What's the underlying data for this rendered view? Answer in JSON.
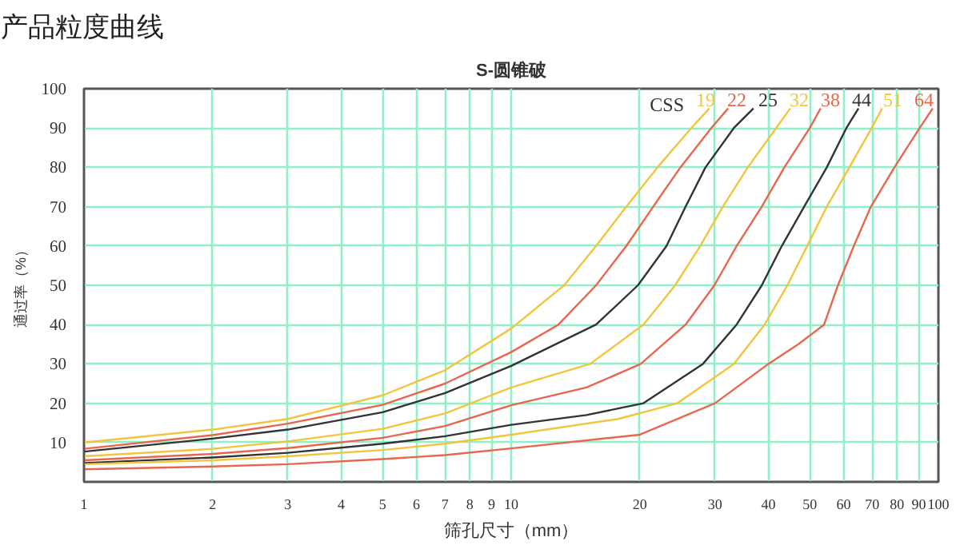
{
  "chart_data": {
    "type": "line",
    "title": "产品粒度曲线",
    "subtitle": "S-圆锥破",
    "xlabel": "筛孔尺寸（mm）",
    "ylabel": "通过率（%）",
    "annotations": [
      "CSS"
    ],
    "log": "x",
    "grid": true,
    "legend": false,
    "marker": "none",
    "line_style": "solid",
    "xlim": [
      1,
      100
    ],
    "xticks": [
      1,
      2,
      3,
      4,
      5,
      6,
      7,
      8,
      9,
      10,
      20,
      30,
      40,
      50,
      60,
      70,
      80,
      90,
      100
    ],
    "ylim": [
      0,
      100
    ],
    "yticks": [
      10,
      20,
      30,
      40,
      50,
      60,
      70,
      80,
      90,
      100
    ],
    "series": [
      {
        "name": "19",
        "color": "#f2c53d",
        "x": [
          1,
          2,
          3,
          5,
          7,
          10,
          13.3,
          15.8,
          18.6,
          22,
          26.4,
          29.1
        ],
        "values": [
          10,
          13.3,
          16,
          22,
          28.4,
          39,
          50,
          60,
          70,
          80,
          90,
          95
        ]
      },
      {
        "name": "22",
        "color": "#e8664e",
        "x": [
          1,
          2,
          3,
          5,
          7,
          10,
          12.9,
          15.8,
          18.6,
          21.5,
          24.9,
          29.4,
          32.2
        ],
        "values": [
          8.4,
          11.9,
          14.8,
          19.6,
          25,
          33,
          40,
          50,
          60,
          70,
          80,
          90,
          95
        ]
      },
      {
        "name": "25",
        "color": "#333333",
        "x": [
          1,
          2,
          3,
          5,
          7,
          10,
          15.8,
          19.8,
          23.1,
          25.6,
          28.5,
          33.2,
          36.9
        ],
        "values": [
          7.7,
          11,
          13.3,
          17.7,
          22.6,
          29.5,
          40,
          50,
          60,
          70,
          80,
          90,
          95
        ]
      },
      {
        "name": "32",
        "color": "#f2c53d",
        "x": [
          1,
          2,
          3,
          5,
          7,
          10,
          15.3,
          20.4,
          24.2,
          27.7,
          31.3,
          35.8,
          41.7,
          45
        ],
        "values": [
          6.5,
          8.4,
          10.3,
          13.5,
          17.4,
          24,
          30,
          40,
          50,
          60,
          70,
          80,
          90,
          95
        ]
      },
      {
        "name": "38",
        "color": "#e8664e",
        "x": [
          1,
          2,
          3,
          5,
          7,
          10,
          15,
          20.1,
          25.6,
          29.9,
          33.7,
          38.6,
          43.6,
          50,
          53
        ],
        "values": [
          5.5,
          7.1,
          8.6,
          11.2,
          14.2,
          19.5,
          24,
          30,
          40,
          50,
          60,
          70,
          80,
          90,
          95
        ]
      },
      {
        "name": "44",
        "color": "#333333",
        "x": [
          1,
          2,
          3,
          5,
          7,
          10,
          15,
          20.4,
          28.1,
          33.7,
          38.6,
          43,
          48.5,
          54.8,
          60.9,
          65
        ],
        "values": [
          4.8,
          6.2,
          7.4,
          9.7,
          11.6,
          14.5,
          17,
          20,
          30,
          40,
          50,
          60,
          70,
          80,
          90,
          95
        ]
      },
      {
        "name": "51",
        "color": "#f2c53d",
        "x": [
          1,
          2,
          3,
          5,
          7,
          10,
          17.8,
          24.5,
          33.2,
          39.2,
          44.3,
          49.3,
          54.8,
          61.9,
          69.8,
          73.8
        ],
        "values": [
          4.5,
          5.5,
          6.5,
          8.1,
          9.7,
          12,
          16,
          20,
          30,
          40,
          50,
          60,
          70,
          80,
          90,
          95
        ]
      },
      {
        "name": "64",
        "color": "#e8664e",
        "x": [
          1,
          2,
          3,
          5,
          7,
          10,
          20,
          30,
          40,
          47,
          54,
          58.2,
          63.4,
          69.5,
          78.9,
          90.4,
          97
        ],
        "values": [
          3.2,
          3.9,
          4.5,
          5.8,
          6.8,
          8.5,
          12,
          20,
          30,
          35,
          40,
          50,
          60,
          70,
          80,
          90,
          95
        ]
      }
    ]
  }
}
